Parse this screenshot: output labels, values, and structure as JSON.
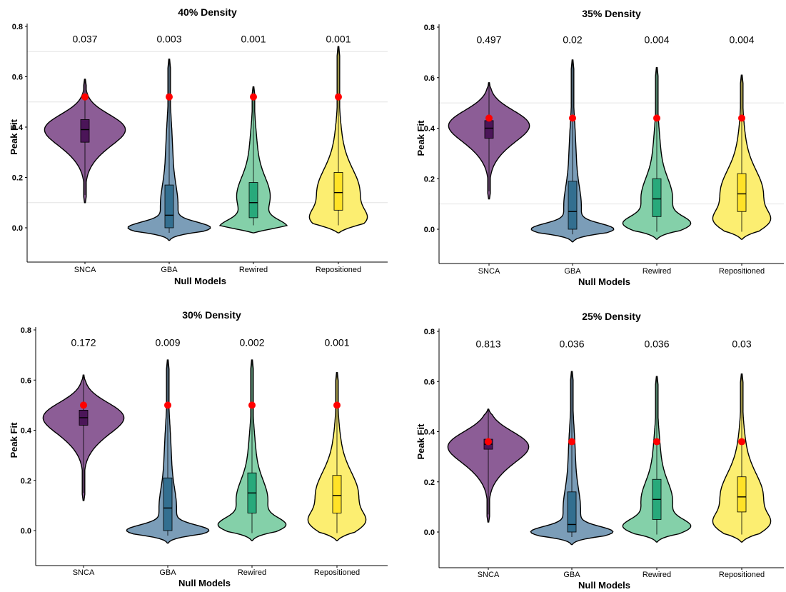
{
  "colors": {
    "SNCA": "#8c5d96",
    "GBA": "#7b9db8",
    "Rewired": "#84d0a9",
    "Repositioned": "#fcee71",
    "SNCA_box": "#4b1558",
    "GBA_box": "#336f90",
    "Rewired_box": "#28a97b",
    "Repositioned_box": "#ffe227",
    "observed_point": "#ff0000"
  },
  "chart_data": [
    {
      "type": "violin",
      "title": "40% Density",
      "xlabel": "Null Models",
      "ylabel": "Peak Fit",
      "ylim": [
        -0.13,
        0.8
      ],
      "yticks": [
        "0.0",
        "0.2",
        "0.4",
        "0.6",
        "0.8"
      ],
      "gridlines": [
        0.1,
        0.5,
        0.7
      ],
      "categories": [
        "SNCA",
        "GBA",
        "Rewired",
        "Repositioned"
      ],
      "pvalues": [
        "0.037",
        "0.003",
        "0.001",
        "0.001"
      ],
      "observed": 0.52,
      "series": [
        {
          "name": "SNCA",
          "min": 0.1,
          "max": 0.59,
          "peak": 0.4,
          "q1": 0.34,
          "median": 0.39,
          "q3": 0.43
        },
        {
          "name": "GBA",
          "min": -0.05,
          "max": 0.67,
          "peak": 0.0,
          "q1": 0.0,
          "median": 0.05,
          "q3": 0.17
        },
        {
          "name": "Rewired",
          "min": -0.02,
          "max": 0.56,
          "peak": 0.0,
          "q1": 0.04,
          "median": 0.1,
          "q3": 0.18
        },
        {
          "name": "Repositioned",
          "min": -0.02,
          "max": 0.72,
          "peak": 0.1,
          "q1": 0.07,
          "median": 0.14,
          "q3": 0.22
        }
      ]
    },
    {
      "type": "violin",
      "title": "35% Density",
      "xlabel": "Null Models",
      "ylabel": "Peak Fit",
      "ylim": [
        -0.13,
        0.8
      ],
      "yticks": [
        "0.0",
        "0.2",
        "0.4",
        "0.6",
        "0.8"
      ],
      "gridlines": [
        0.1,
        0.5
      ],
      "categories": [
        "SNCA",
        "GBA",
        "Rewired",
        "Repositioned"
      ],
      "pvalues": [
        "0.497",
        "0.02",
        "0.004",
        "0.004"
      ],
      "observed": 0.44,
      "series": [
        {
          "name": "SNCA",
          "min": 0.12,
          "max": 0.58,
          "peak": 0.42,
          "q1": 0.36,
          "median": 0.4,
          "q3": 0.43
        },
        {
          "name": "GBA",
          "min": -0.05,
          "max": 0.67,
          "peak": 0.0,
          "q1": 0.0,
          "median": 0.07,
          "q3": 0.19
        },
        {
          "name": "Rewired",
          "min": -0.04,
          "max": 0.64,
          "peak": 0.03,
          "q1": 0.05,
          "median": 0.12,
          "q3": 0.2
        },
        {
          "name": "Repositioned",
          "min": -0.04,
          "max": 0.61,
          "peak": 0.13,
          "q1": 0.07,
          "median": 0.14,
          "q3": 0.22
        }
      ]
    },
    {
      "type": "violin",
      "title": "30% Density",
      "xlabel": "Null Models",
      "ylabel": "Peak Fit",
      "ylim": [
        -0.13,
        0.8
      ],
      "yticks": [
        "0.0",
        "0.2",
        "0.4",
        "0.6",
        "0.8"
      ],
      "gridlines": [],
      "categories": [
        "SNCA",
        "GBA",
        "Rewired",
        "Repositioned"
      ],
      "pvalues": [
        "0.172",
        "0.009",
        "0.002",
        "0.001"
      ],
      "observed": 0.5,
      "series": [
        {
          "name": "SNCA",
          "min": 0.12,
          "max": 0.62,
          "peak": 0.46,
          "q1": 0.42,
          "median": 0.45,
          "q3": 0.48
        },
        {
          "name": "GBA",
          "min": -0.05,
          "max": 0.68,
          "peak": 0.0,
          "q1": 0.0,
          "median": 0.09,
          "q3": 0.21
        },
        {
          "name": "Rewired",
          "min": -0.04,
          "max": 0.68,
          "peak": 0.08,
          "q1": 0.07,
          "median": 0.15,
          "q3": 0.23
        },
        {
          "name": "Repositioned",
          "min": -0.04,
          "max": 0.63,
          "peak": 0.12,
          "q1": 0.07,
          "median": 0.14,
          "q3": 0.22
        }
      ]
    },
    {
      "type": "violin",
      "title": "25% Density",
      "xlabel": "Null Models",
      "ylabel": "Peak Fit",
      "ylim": [
        -0.13,
        0.8
      ],
      "yticks": [
        "0.0",
        "0.2",
        "0.4",
        "0.6",
        "0.8"
      ],
      "gridlines": [],
      "categories": [
        "SNCA",
        "GBA",
        "Rewired",
        "Repositioned"
      ],
      "pvalues": [
        "0.813",
        "0.036",
        "0.036",
        "0.03"
      ],
      "observed": 0.36,
      "series": [
        {
          "name": "SNCA",
          "min": 0.04,
          "max": 0.49,
          "peak": 0.35,
          "q1": 0.33,
          "median": 0.35,
          "q3": 0.37
        },
        {
          "name": "GBA",
          "min": -0.05,
          "max": 0.64,
          "peak": 0.0,
          "q1": 0.0,
          "median": 0.03,
          "q3": 0.16
        },
        {
          "name": "Rewired",
          "min": -0.04,
          "max": 0.62,
          "peak": 0.05,
          "q1": 0.05,
          "median": 0.13,
          "q3": 0.21
        },
        {
          "name": "Repositioned",
          "min": -0.04,
          "max": 0.63,
          "peak": 0.1,
          "q1": 0.08,
          "median": 0.14,
          "q3": 0.22
        }
      ]
    }
  ]
}
